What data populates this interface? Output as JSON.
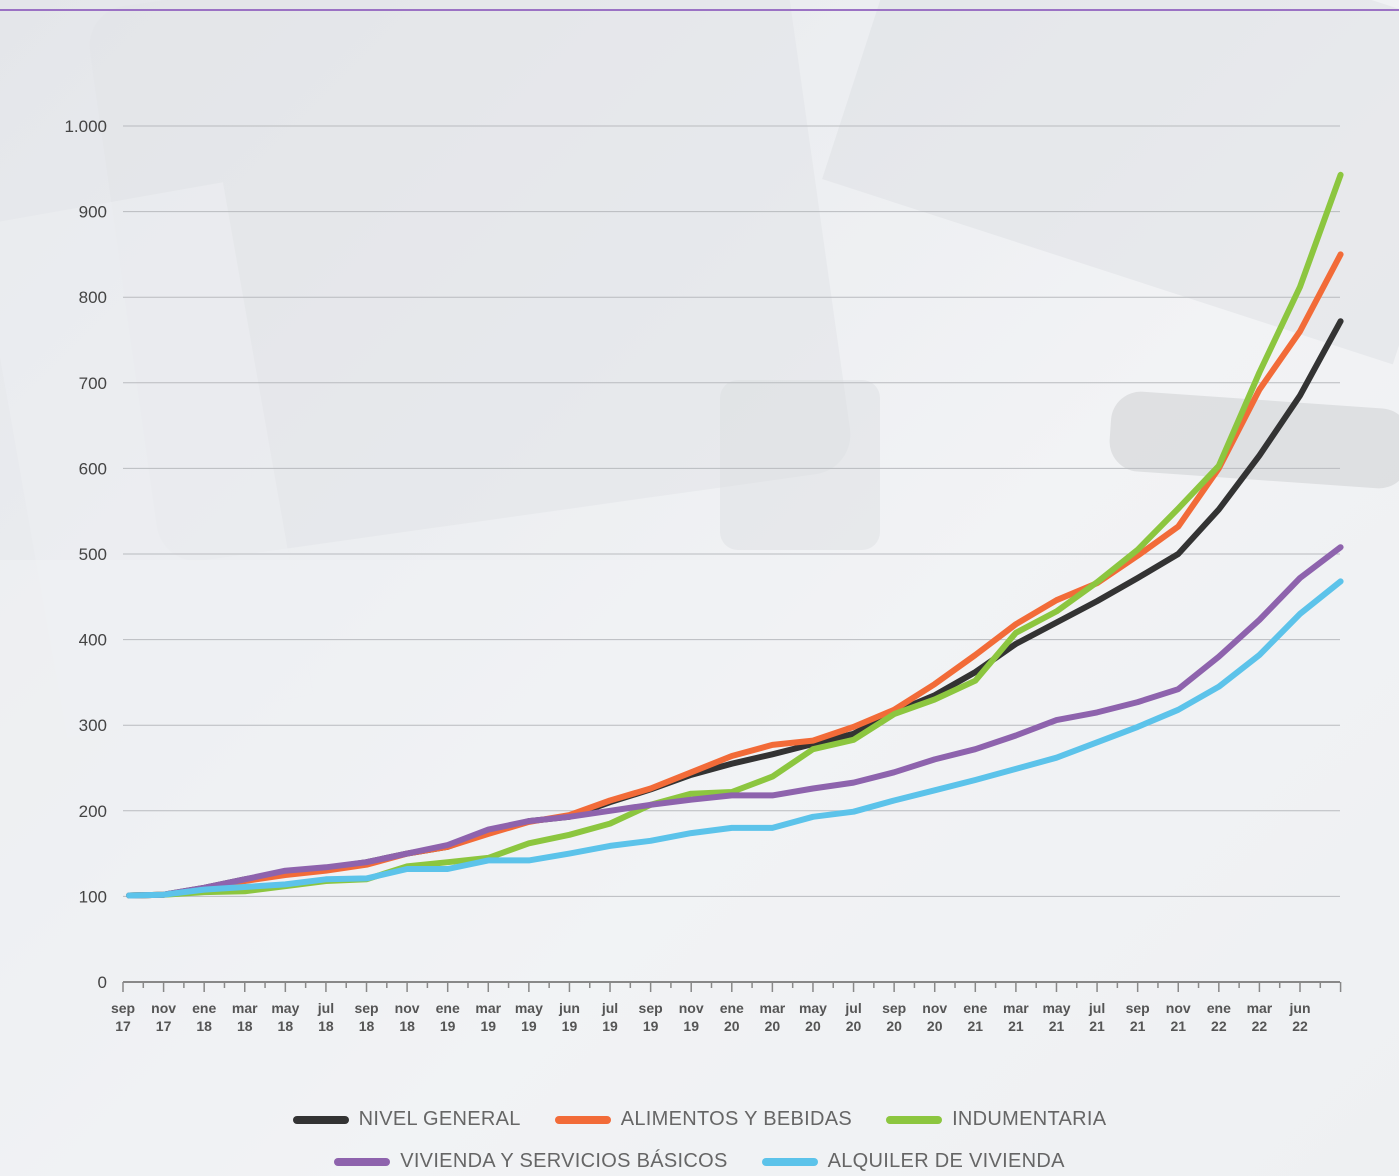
{
  "colors": {
    "accent_line": "#9b72c4",
    "grid": "#b9bbbf",
    "axis": "#888888"
  },
  "chart_data": {
    "type": "line",
    "title": "",
    "xlabel": "",
    "ylabel": "",
    "ylim": [
      0,
      1000
    ],
    "yticks": [
      {
        "value": 0,
        "label": "0"
      },
      {
        "value": 100,
        "label": "100"
      },
      {
        "value": 200,
        "label": "200"
      },
      {
        "value": 300,
        "label": "300"
      },
      {
        "value": 400,
        "label": "400"
      },
      {
        "value": 500,
        "label": "500"
      },
      {
        "value": 600,
        "label": "600"
      },
      {
        "value": 700,
        "label": "700"
      },
      {
        "value": 800,
        "label": "800"
      },
      {
        "value": 900,
        "label": "900"
      },
      {
        "value": 1000,
        "label": "1.000"
      }
    ],
    "xticks": [
      {
        "index": 0,
        "label": [
          "sep",
          "17"
        ]
      },
      {
        "index": 2,
        "label": [
          "nov",
          "17"
        ]
      },
      {
        "index": 4,
        "label": [
          "ene",
          "18"
        ]
      },
      {
        "index": 6,
        "label": [
          "mar",
          "18"
        ]
      },
      {
        "index": 8,
        "label": [
          "may",
          "18"
        ]
      },
      {
        "index": 10,
        "label": [
          "jul",
          "18"
        ]
      },
      {
        "index": 12,
        "label": [
          "sep",
          "18"
        ]
      },
      {
        "index": 14,
        "label": [
          "nov",
          "18"
        ]
      },
      {
        "index": 16,
        "label": [
          "ene",
          "19"
        ]
      },
      {
        "index": 18,
        "label": [
          "mar",
          "19"
        ]
      },
      {
        "index": 20,
        "label": [
          "may",
          "19"
        ]
      },
      {
        "index": 22,
        "label": [
          "jun",
          "19"
        ]
      },
      {
        "index": 24,
        "label": [
          "jul",
          "19"
        ]
      },
      {
        "index": 26,
        "label": [
          "sep",
          "19"
        ]
      },
      {
        "index": 28,
        "label": [
          "nov",
          "19"
        ]
      },
      {
        "index": 30,
        "label": [
          "ene",
          "20"
        ]
      },
      {
        "index": 32,
        "label": [
          "mar",
          "20"
        ]
      },
      {
        "index": 34,
        "label": [
          "may",
          "20"
        ]
      },
      {
        "index": 36,
        "label": [
          "jul",
          "20"
        ]
      },
      {
        "index": 38,
        "label": [
          "sep",
          "20"
        ]
      },
      {
        "index": 40,
        "label": [
          "nov",
          "20"
        ]
      },
      {
        "index": 42,
        "label": [
          "ene",
          "21"
        ]
      },
      {
        "index": 44,
        "label": [
          "mar",
          "21"
        ]
      },
      {
        "index": 46,
        "label": [
          "may",
          "21"
        ]
      },
      {
        "index": 48,
        "label": [
          "jul",
          "21"
        ]
      },
      {
        "index": 50,
        "label": [
          "sep",
          "21"
        ]
      },
      {
        "index": 52,
        "label": [
          "nov",
          "21"
        ]
      },
      {
        "index": 54,
        "label": [
          "ene",
          "22"
        ]
      },
      {
        "index": 56,
        "label": [
          "mar",
          "22"
        ]
      },
      {
        "index": 58,
        "label": [
          "jun",
          "22"
        ]
      }
    ],
    "x_count": 61,
    "series": [
      {
        "name": "NIVEL GENERAL",
        "color": "#333333",
        "points": [
          [
            0.3,
            101
          ],
          [
            2,
            102
          ],
          [
            4,
            110
          ],
          [
            6,
            120
          ],
          [
            8,
            128
          ],
          [
            10,
            133
          ],
          [
            12,
            140
          ],
          [
            14,
            150
          ],
          [
            16,
            158
          ],
          [
            18,
            175
          ],
          [
            20,
            188
          ],
          [
            22,
            193
          ],
          [
            24,
            210
          ],
          [
            26,
            225
          ],
          [
            28,
            242
          ],
          [
            30,
            255
          ],
          [
            32,
            266
          ],
          [
            34,
            278
          ],
          [
            36,
            290
          ],
          [
            38,
            315
          ],
          [
            40,
            335
          ],
          [
            42,
            362
          ],
          [
            44,
            395
          ],
          [
            46,
            420
          ],
          [
            48,
            445
          ],
          [
            50,
            472
          ],
          [
            52,
            500
          ],
          [
            54,
            552
          ],
          [
            56,
            615
          ],
          [
            58,
            685
          ],
          [
            60,
            772
          ]
        ]
      },
      {
        "name": "ALIMENTOS Y BEBIDAS",
        "color": "#f26b38",
        "points": [
          [
            0.3,
            101
          ],
          [
            2,
            102
          ],
          [
            4,
            108
          ],
          [
            6,
            118
          ],
          [
            8,
            125
          ],
          [
            10,
            130
          ],
          [
            12,
            137
          ],
          [
            14,
            150
          ],
          [
            16,
            158
          ],
          [
            18,
            173
          ],
          [
            20,
            187
          ],
          [
            22,
            195
          ],
          [
            24,
            212
          ],
          [
            26,
            226
          ],
          [
            28,
            245
          ],
          [
            30,
            264
          ],
          [
            32,
            277
          ],
          [
            34,
            282
          ],
          [
            36,
            298
          ],
          [
            38,
            318
          ],
          [
            40,
            348
          ],
          [
            42,
            382
          ],
          [
            44,
            418
          ],
          [
            46,
            446
          ],
          [
            48,
            466
          ],
          [
            50,
            498
          ],
          [
            52,
            532
          ],
          [
            54,
            600
          ],
          [
            56,
            692
          ],
          [
            58,
            760
          ],
          [
            60,
            850
          ]
        ]
      },
      {
        "name": "INDUMENTARIA",
        "color": "#8cc63f",
        "points": [
          [
            0.3,
            101
          ],
          [
            2,
            102
          ],
          [
            4,
            105
          ],
          [
            6,
            106
          ],
          [
            8,
            112
          ],
          [
            10,
            118
          ],
          [
            12,
            120
          ],
          [
            14,
            135
          ],
          [
            16,
            140
          ],
          [
            18,
            145
          ],
          [
            20,
            162
          ],
          [
            22,
            172
          ],
          [
            24,
            185
          ],
          [
            26,
            207
          ],
          [
            28,
            220
          ],
          [
            30,
            222
          ],
          [
            32,
            240
          ],
          [
            34,
            272
          ],
          [
            36,
            283
          ],
          [
            38,
            313
          ],
          [
            40,
            330
          ],
          [
            42,
            352
          ],
          [
            44,
            408
          ],
          [
            46,
            433
          ],
          [
            48,
            467
          ],
          [
            50,
            505
          ],
          [
            52,
            553
          ],
          [
            54,
            603
          ],
          [
            56,
            712
          ],
          [
            58,
            812
          ],
          [
            60,
            943
          ]
        ]
      },
      {
        "name": "VIVIENDA Y SERVICIOS BÁSICOS",
        "color": "#8e63ad",
        "points": [
          [
            0.3,
            101
          ],
          [
            2,
            102
          ],
          [
            4,
            110
          ],
          [
            6,
            120
          ],
          [
            8,
            130
          ],
          [
            10,
            134
          ],
          [
            12,
            140
          ],
          [
            14,
            150
          ],
          [
            16,
            160
          ],
          [
            18,
            178
          ],
          [
            20,
            188
          ],
          [
            22,
            193
          ],
          [
            24,
            200
          ],
          [
            26,
            207
          ],
          [
            28,
            213
          ],
          [
            30,
            218
          ],
          [
            32,
            218
          ],
          [
            34,
            226
          ],
          [
            36,
            233
          ],
          [
            38,
            245
          ],
          [
            40,
            260
          ],
          [
            42,
            272
          ],
          [
            44,
            288
          ],
          [
            46,
            306
          ],
          [
            48,
            315
          ],
          [
            50,
            327
          ],
          [
            52,
            342
          ],
          [
            54,
            380
          ],
          [
            56,
            423
          ],
          [
            58,
            472
          ],
          [
            60,
            508
          ]
        ]
      },
      {
        "name": "ALQUILER DE VIVIENDA",
        "color": "#5cc3ea",
        "points": [
          [
            0.3,
            101
          ],
          [
            2,
            102
          ],
          [
            4,
            108
          ],
          [
            6,
            111
          ],
          [
            8,
            114
          ],
          [
            10,
            120
          ],
          [
            12,
            121
          ],
          [
            14,
            132
          ],
          [
            16,
            132
          ],
          [
            18,
            142
          ],
          [
            20,
            142
          ],
          [
            22,
            150
          ],
          [
            24,
            159
          ],
          [
            26,
            165
          ],
          [
            28,
            174
          ],
          [
            30,
            180
          ],
          [
            32,
            180
          ],
          [
            34,
            193
          ],
          [
            36,
            199
          ],
          [
            38,
            212
          ],
          [
            40,
            224
          ],
          [
            42,
            236
          ],
          [
            44,
            249
          ],
          [
            46,
            262
          ],
          [
            48,
            280
          ],
          [
            50,
            298
          ],
          [
            52,
            318
          ],
          [
            54,
            345
          ],
          [
            56,
            382
          ],
          [
            58,
            430
          ],
          [
            60,
            468
          ]
        ]
      }
    ],
    "legend": {
      "placement": "bottom",
      "rows": [
        [
          "NIVEL GENERAL",
          "ALIMENTOS Y BEBIDAS",
          "INDUMENTARIA"
        ],
        [
          "VIVIENDA Y SERVICIOS BÁSICOS",
          "ALQUILER DE VIVIENDA"
        ]
      ]
    },
    "grid": true
  }
}
